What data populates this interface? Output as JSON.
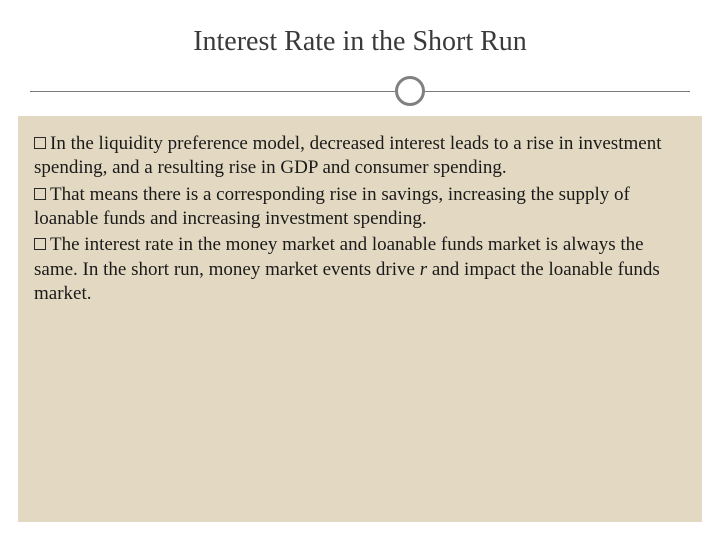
{
  "slide": {
    "title": "Interest Rate in the Short Run",
    "background_color": "#ffffff",
    "content_background": "#e3d9c2",
    "title_color": "#3a3a3a",
    "title_fontsize": 28,
    "body_fontsize": 19,
    "text_color": "#1a1a1a",
    "divider_color": "#808080",
    "bullets": [
      {
        "text": "In the liquidity preference model, decreased interest leads to a rise in investment spending, and a resulting rise in GDP and consumer spending."
      },
      {
        "text": "That means there is a corresponding rise in savings, increasing the supply of loanable funds and increasing investment spending."
      },
      {
        "text_pre": "The interest rate in the money market and loanable funds market is always the same. In the short run, money market events drive ",
        "text_italic": "r",
        "text_post": " and impact the loanable funds market."
      }
    ]
  }
}
